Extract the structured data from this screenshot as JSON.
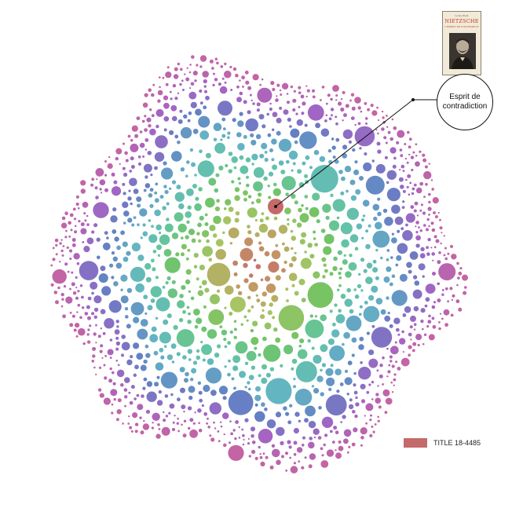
{
  "diagram": {
    "type": "bubble-cluster",
    "callout_label": "Esprit de contradiction",
    "legend": {
      "label": "TITLE 18-4485",
      "color": "#c46a6a"
    },
    "book_cover": {
      "author": "Louis Prost",
      "title": "NIETZSCHE",
      "subtitle": "L'ESPRIT DE CONTRADICTION"
    },
    "palette": {
      "center": "#c46a6a",
      "inner": "#c49464",
      "mid": "#a8c464",
      "green": "#72c464",
      "teal": "#64c4a4",
      "cyan": "#64b4c4",
      "blue": "#6480c4",
      "purple": "#a464c4",
      "magenta": "#c464a4"
    }
  }
}
